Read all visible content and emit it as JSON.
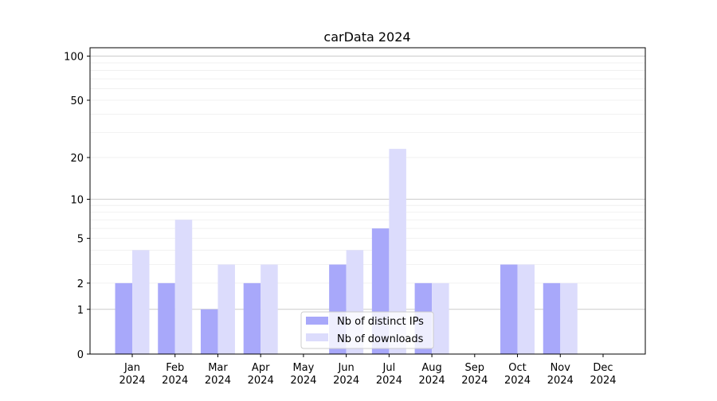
{
  "chart_data": {
    "type": "bar",
    "title": "carData 2024",
    "xlabel": "",
    "ylabel": "",
    "yscale": "symlog",
    "ylim": [
      0,
      114
    ],
    "yticks": [
      0,
      1,
      2,
      5,
      10,
      20,
      50,
      100
    ],
    "ytick_labels": [
      "0",
      "1",
      "2",
      "5",
      "10",
      "20",
      "50",
      "100"
    ],
    "grid": true,
    "legend_placement": "bottom-center",
    "categories": [
      {
        "month": "Jan",
        "year": "2024"
      },
      {
        "month": "Feb",
        "year": "2024"
      },
      {
        "month": "Mar",
        "year": "2024"
      },
      {
        "month": "Apr",
        "year": "2024"
      },
      {
        "month": "May",
        "year": "2024"
      },
      {
        "month": "Jun",
        "year": "2024"
      },
      {
        "month": "Jul",
        "year": "2024"
      },
      {
        "month": "Aug",
        "year": "2024"
      },
      {
        "month": "Sep",
        "year": "2024"
      },
      {
        "month": "Oct",
        "year": "2024"
      },
      {
        "month": "Nov",
        "year": "2024"
      },
      {
        "month": "Dec",
        "year": "2024"
      }
    ],
    "series": [
      {
        "name": "Nb of distinct IPs",
        "color": "#a8a8fa",
        "values": [
          2,
          2,
          1,
          2,
          0,
          3,
          6,
          2,
          0,
          3,
          2,
          0
        ]
      },
      {
        "name": "Nb of downloads",
        "color": "#dcdcfc",
        "values": [
          4,
          7,
          3,
          3,
          0,
          4,
          23,
          2,
          0,
          3,
          2,
          0
        ]
      }
    ]
  }
}
